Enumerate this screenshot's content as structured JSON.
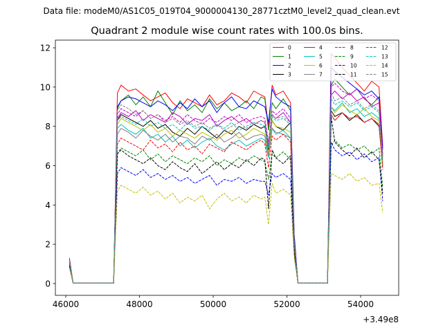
{
  "chart_data": {
    "type": "line",
    "suptitle": "Data file: modeM0/AS1C05_019T04_9000004130_28771cztM0_level2_quad_clean.evt",
    "title": "Quadrant 2 module wise count rates with 100.0s bins.",
    "xlabel": "",
    "ylabel": "",
    "x_offset_label": "+3.49e8",
    "xlim": [
      45718,
      55033
    ],
    "ylim": [
      -0.6,
      12.39
    ],
    "xticks": [
      46000,
      48000,
      50000,
      52000,
      54000
    ],
    "yticks": [
      0,
      2,
      4,
      6,
      8,
      10,
      12
    ],
    "grid": false,
    "legend_position": "top-right",
    "x": [
      46100,
      46200,
      47300,
      47400,
      47500,
      47700,
      47900,
      48100,
      48300,
      48500,
      48700,
      48900,
      49100,
      49300,
      49500,
      49700,
      49900,
      50100,
      50300,
      50500,
      50700,
      50900,
      51100,
      51300,
      51400,
      51500,
      51600,
      51700,
      51900,
      52100,
      52200,
      52300,
      53100,
      53200,
      53300,
      53500,
      53700,
      53900,
      54100,
      54300,
      54500,
      54600
    ],
    "series": [
      {
        "name": "0",
        "color": "#ff0000",
        "dash": false,
        "values": [
          1.3,
          0.02,
          0.02,
          9.7,
          10.1,
          9.8,
          9.9,
          9.6,
          9.3,
          9.5,
          9.7,
          9.2,
          8.9,
          9.4,
          9.2,
          9.0,
          9.6,
          9.1,
          9.3,
          9.7,
          9.5,
          9.2,
          9.8,
          9.6,
          9.5,
          8.0,
          10.1,
          9.6,
          9.8,
          9.2,
          2.5,
          0.02,
          0.02,
          11.7,
          11.5,
          11.0,
          10.6,
          10.2,
          9.8,
          10.3,
          10.0,
          7.0
        ]
      },
      {
        "name": "1",
        "color": "#008000",
        "dash": false,
        "values": [
          1.2,
          0.02,
          0.02,
          8.9,
          9.3,
          9.6,
          9.1,
          9.5,
          9.0,
          9.8,
          9.2,
          8.6,
          9.3,
          8.8,
          9.1,
          8.7,
          9.4,
          8.9,
          9.2,
          8.8,
          9.0,
          9.3,
          8.9,
          9.5,
          9.4,
          7.8,
          9.2,
          8.9,
          9.4,
          8.8,
          2.3,
          0.02,
          0.02,
          10.1,
          10.4,
          10.0,
          9.6,
          9.9,
          9.4,
          9.1,
          9.5,
          6.8
        ]
      },
      {
        "name": "2",
        "color": "#0000ff",
        "dash": false,
        "values": [
          1.2,
          0.02,
          0.02,
          9.0,
          9.3,
          9.5,
          9.4,
          9.2,
          9.0,
          9.3,
          9.1,
          8.8,
          9.2,
          8.9,
          9.4,
          9.0,
          9.3,
          8.7,
          9.2,
          9.5,
          9.0,
          8.9,
          9.3,
          9.1,
          9.0,
          8.2,
          9.9,
          9.5,
          9.2,
          9.0,
          2.4,
          0.02,
          0.02,
          11.0,
          10.8,
          10.5,
          10.2,
          9.9,
          9.6,
          9.8,
          9.4,
          6.9
        ]
      },
      {
        "name": "3",
        "color": "#000000",
        "dash": false,
        "values": [
          1.1,
          0.02,
          0.02,
          8.3,
          8.6,
          8.4,
          8.2,
          8.0,
          8.3,
          7.9,
          8.1,
          7.7,
          7.5,
          7.9,
          7.6,
          8.0,
          7.7,
          7.4,
          7.8,
          7.6,
          8.0,
          7.8,
          8.1,
          7.9,
          8.0,
          6.8,
          8.3,
          8.0,
          7.8,
          8.2,
          2.0,
          0.02,
          0.02,
          8.8,
          8.5,
          8.7,
          8.3,
          8.6,
          8.2,
          8.4,
          8.0,
          6.0
        ]
      },
      {
        "name": "4",
        "color": "#bf00bf",
        "dash": false,
        "values": [
          1.1,
          0.02,
          0.02,
          8.4,
          8.7,
          8.5,
          8.8,
          8.3,
          8.6,
          8.4,
          8.2,
          8.7,
          8.5,
          8.1,
          8.4,
          8.3,
          8.6,
          8.0,
          8.3,
          8.5,
          8.2,
          8.4,
          8.1,
          8.3,
          8.2,
          7.0,
          8.6,
          8.4,
          8.7,
          8.2,
          2.1,
          0.02,
          0.02,
          9.6,
          9.8,
          9.4,
          9.7,
          9.3,
          9.5,
          9.0,
          9.2,
          6.5
        ]
      },
      {
        "name": "5",
        "color": "#00bfbf",
        "dash": false,
        "values": [
          1.0,
          0.02,
          0.02,
          7.9,
          8.1,
          7.8,
          7.6,
          7.9,
          7.4,
          7.6,
          7.2,
          7.5,
          7.0,
          7.3,
          6.9,
          7.2,
          7.4,
          7.0,
          6.8,
          7.1,
          7.3,
          7.0,
          7.2,
          7.4,
          7.3,
          6.4,
          7.9,
          7.6,
          7.8,
          7.4,
          1.9,
          0.02,
          0.02,
          9.0,
          8.8,
          9.2,
          8.7,
          8.9,
          8.5,
          8.7,
          8.4,
          6.2
        ]
      },
      {
        "name": "6",
        "color": "#bfbf00",
        "dash": false,
        "values": [
          1.0,
          0.02,
          0.02,
          8.1,
          8.4,
          8.2,
          8.0,
          7.8,
          8.1,
          7.7,
          7.9,
          7.5,
          7.8,
          7.6,
          7.4,
          7.7,
          7.5,
          7.3,
          7.6,
          7.8,
          7.4,
          7.6,
          7.9,
          7.7,
          7.6,
          6.6,
          8.3,
          8.0,
          7.9,
          7.7,
          2.0,
          0.02,
          0.02,
          9.0,
          8.7,
          9.1,
          8.8,
          8.6,
          8.9,
          8.5,
          8.3,
          6.1
        ]
      },
      {
        "name": "7",
        "color": "#808080",
        "dash": false,
        "values": [
          1.0,
          0.02,
          0.02,
          7.6,
          7.9,
          7.7,
          7.4,
          7.8,
          7.5,
          7.3,
          7.6,
          7.2,
          7.5,
          7.4,
          7.1,
          7.5,
          7.3,
          7.6,
          7.2,
          7.4,
          7.7,
          7.3,
          7.5,
          7.6,
          7.5,
          6.5,
          7.9,
          7.7,
          7.6,
          7.4,
          1.9,
          0.02,
          0.02,
          8.6,
          8.3,
          8.7,
          8.4,
          8.5,
          8.2,
          8.4,
          8.1,
          5.9
        ]
      },
      {
        "name": "8",
        "color": "#ff0000",
        "dash": true,
        "values": [
          1.0,
          0.02,
          0.02,
          7.1,
          7.4,
          7.2,
          7.0,
          6.8,
          7.3,
          6.9,
          7.1,
          6.7,
          7.2,
          6.8,
          7.0,
          6.6,
          7.1,
          6.9,
          6.7,
          7.2,
          7.0,
          6.8,
          7.1,
          7.3,
          7.1,
          5.9,
          7.5,
          7.3,
          7.6,
          7.2,
          1.9,
          0.02,
          0.02,
          8.6,
          8.3,
          8.7,
          8.4,
          8.5,
          8.2,
          8.4,
          8.1,
          5.8
        ]
      },
      {
        "name": "9",
        "color": "#008000",
        "dash": true,
        "values": [
          0.9,
          0.02,
          0.02,
          6.6,
          6.9,
          6.7,
          6.5,
          6.8,
          6.3,
          6.6,
          6.2,
          6.5,
          6.3,
          6.1,
          6.4,
          6.2,
          6.5,
          6.0,
          6.3,
          6.1,
          6.4,
          6.2,
          6.5,
          6.3,
          6.2,
          5.3,
          6.6,
          6.4,
          6.7,
          6.3,
          1.7,
          0.02,
          0.02,
          7.0,
          7.3,
          6.9,
          7.1,
          6.8,
          7.0,
          6.6,
          6.9,
          4.9
        ]
      },
      {
        "name": "10",
        "color": "#0000ff",
        "dash": true,
        "values": [
          0.8,
          0.02,
          0.02,
          5.6,
          5.9,
          5.7,
          5.5,
          5.8,
          5.4,
          5.6,
          5.3,
          5.5,
          5.2,
          5.4,
          5.1,
          5.3,
          5.5,
          5.0,
          5.3,
          5.2,
          5.4,
          5.1,
          5.3,
          5.2,
          5.2,
          4.5,
          5.6,
          5.4,
          5.6,
          5.3,
          1.5,
          0.02,
          0.02,
          7.2,
          6.8,
          6.5,
          6.7,
          6.3,
          6.6,
          6.2,
          6.4,
          4.2
        ]
      },
      {
        "name": "11",
        "color": "#000000",
        "dash": true,
        "values": [
          0.9,
          0.02,
          0.02,
          6.6,
          6.8,
          6.5,
          6.3,
          6.1,
          6.4,
          6.0,
          5.8,
          6.2,
          5.9,
          5.7,
          6.1,
          5.6,
          5.9,
          6.2,
          5.8,
          6.1,
          5.9,
          6.3,
          6.0,
          6.4,
          6.3,
          3.8,
          6.8,
          6.4,
          6.1,
          6.5,
          1.6,
          0.02,
          0.02,
          8.5,
          7.2,
          6.8,
          6.5,
          6.9,
          6.4,
          6.7,
          6.3,
          4.6
        ]
      },
      {
        "name": "12",
        "color": "#bf00bf",
        "dash": true,
        "values": [
          1.2,
          0.02,
          0.02,
          8.6,
          8.9,
          8.7,
          8.5,
          8.8,
          8.4,
          8.6,
          8.3,
          8.5,
          8.2,
          8.6,
          8.3,
          8.1,
          8.4,
          8.2,
          8.5,
          8.3,
          8.6,
          8.2,
          8.4,
          8.5,
          8.4,
          7.2,
          8.8,
          8.6,
          8.9,
          8.4,
          2.2,
          0.02,
          0.02,
          10.0,
          10.2,
          9.8,
          9.6,
          9.9,
          9.4,
          9.6,
          9.3,
          6.6
        ]
      },
      {
        "name": "13",
        "color": "#00bfbf",
        "dash": true,
        "values": [
          1.1,
          0.02,
          0.02,
          8.3,
          8.5,
          8.3,
          8.1,
          8.4,
          8.0,
          8.2,
          7.9,
          8.1,
          7.8,
          8.2,
          7.9,
          8.0,
          7.8,
          8.1,
          7.9,
          8.2,
          7.8,
          8.0,
          8.2,
          8.1,
          8.0,
          6.9,
          8.5,
          8.3,
          8.4,
          8.1,
          2.1,
          0.02,
          0.02,
          9.4,
          9.1,
          9.3,
          9.0,
          9.2,
          8.8,
          9.0,
          8.7,
          6.3
        ]
      },
      {
        "name": "14",
        "color": "#bfbf00",
        "dash": true,
        "values": [
          0.8,
          0.02,
          0.02,
          4.7,
          5.0,
          4.8,
          4.6,
          4.9,
          4.5,
          4.7,
          4.3,
          4.6,
          4.1,
          4.4,
          4.2,
          4.5,
          3.8,
          4.3,
          4.6,
          4.2,
          4.4,
          4.1,
          4.5,
          4.3,
          4.4,
          3.0,
          5.1,
          4.6,
          4.8,
          4.5,
          1.3,
          0.02,
          0.02,
          5.6,
          5.5,
          5.3,
          5.6,
          5.2,
          5.4,
          5.0,
          5.1,
          3.6
        ]
      },
      {
        "name": "15",
        "color": "#808080",
        "dash": true,
        "values": [
          1.2,
          0.02,
          0.02,
          8.8,
          9.1,
          8.9,
          8.6,
          8.8,
          8.4,
          8.6,
          8.2,
          8.4,
          8.1,
          8.3,
          8.0,
          8.2,
          7.9,
          8.1,
          7.8,
          8.0,
          8.2,
          7.9,
          8.1,
          8.3,
          8.2,
          7.0,
          8.6,
          8.4,
          8.5,
          8.2,
          2.1,
          0.02,
          0.02,
          9.7,
          9.3,
          9.5,
          9.1,
          9.3,
          8.9,
          9.1,
          8.8,
          6.4
        ]
      }
    ]
  }
}
